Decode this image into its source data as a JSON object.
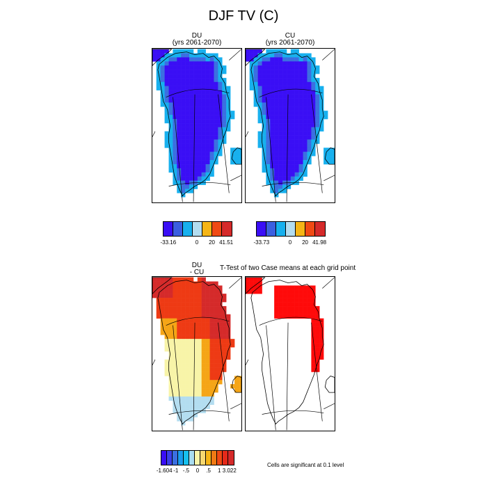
{
  "figure": {
    "title": "DJF TV (C)"
  },
  "panels": {
    "du": {
      "title_line1": "DU",
      "title_line2": "(yrs 2061-2070)"
    },
    "cu": {
      "title_line1": "CU",
      "title_line2": "(yrs 2061-2070)"
    },
    "diff": {
      "title_line1": "DU",
      "title_line2": "- CU"
    },
    "ttest": {
      "title": "T-Test of two Case means at each grid point"
    }
  },
  "colorbars": {
    "du": {
      "colors": [
        "#3a0ef5",
        "#3b5fe0",
        "#17b0ee",
        "#b3ddf0",
        "#f5b516",
        "#f04a14",
        "#d52a2a"
      ],
      "labels": [
        "-33.16",
        "0",
        "20",
        "41.51"
      ]
    },
    "cu": {
      "colors": [
        "#3a0ef5",
        "#3b5fe0",
        "#17b0ee",
        "#b3ddf0",
        "#f5b516",
        "#f04a14",
        "#d52a2a"
      ],
      "labels": [
        "-33.73",
        "0",
        "20",
        "41.98"
      ]
    },
    "diff": {
      "colors": [
        "#3a0ef5",
        "#3b40ea",
        "#3b6fe0",
        "#1a9cee",
        "#17c0ee",
        "#a9dcf0",
        "#f8f4a8",
        "#f8d870",
        "#f5b516",
        "#f07a14",
        "#f04a14",
        "#e52a1a",
        "#d52a2a"
      ],
      "labels": [
        "-1.604",
        "-1",
        "-.5",
        "0",
        ".5",
        "1",
        "3.022"
      ]
    }
  },
  "legend_note": "Cells are significant at 0.1 level",
  "map_colors": {
    "deep": "#3a0ef5",
    "mid": "#3b6fe0",
    "edge": "#17b0ee",
    "yellow": "#f8f4a8",
    "lightblue": "#b3ddf0",
    "orange": "#f5a516",
    "red": "#ee3a14",
    "darkred": "#d52a2a",
    "sig": "#ff0a0a"
  }
}
